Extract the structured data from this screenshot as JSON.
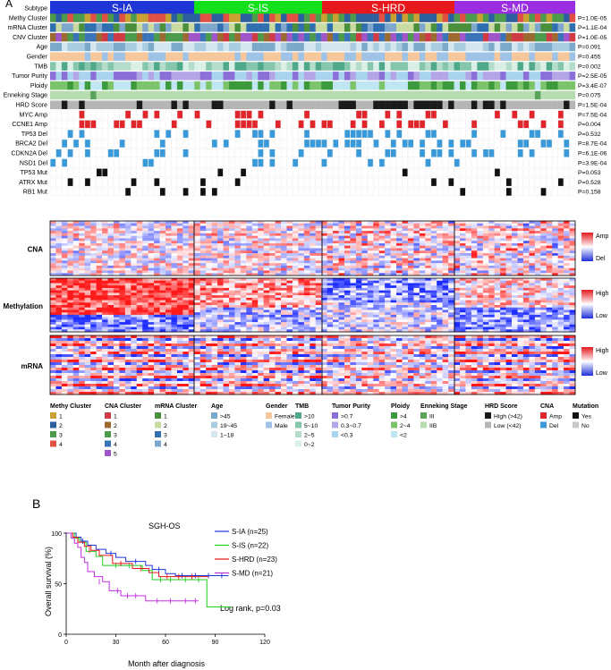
{
  "panels": {
    "a": "A",
    "b": "B"
  },
  "subtypes": [
    {
      "name": "S-IA",
      "color": "#1f35d6"
    },
    {
      "name": "S-IS",
      "color": "#12e01a"
    },
    {
      "name": "S-HRD",
      "color": "#e6181b"
    },
    {
      "name": "S-MD",
      "color": "#9b2ee0"
    }
  ],
  "annotation_rows": [
    {
      "label": "Subtype",
      "p": ""
    },
    {
      "label": "Methy Cluster",
      "p": "P=1.0E-05"
    },
    {
      "label": "mRNA Cluster",
      "p": "P=1.1E-04"
    },
    {
      "label": "CNV Cluster",
      "p": "P=1.0E-05"
    },
    {
      "label": "Age",
      "p": "P=0.091"
    },
    {
      "label": "Gender",
      "p": "P=0.455"
    },
    {
      "label": "TMB",
      "p": "P=0.002"
    },
    {
      "label": "Tumor Purity",
      "p": "P=2.5E-05"
    },
    {
      "label": "Ploidy",
      "p": "P=3.4E-07"
    },
    {
      "label": "Enneking Stage",
      "p": "P=0.075"
    },
    {
      "label": "HRD Score",
      "p": "P=1.5E-04"
    },
    {
      "label": "MYC Amp",
      "p": "P=7.5E-04"
    },
    {
      "label": "CCNE1 Amp",
      "p": "P=0.004"
    },
    {
      "label": "TP53 Del",
      "p": "P=0.532"
    },
    {
      "label": "BRCA2 Del",
      "p": "P=8.7E-04"
    },
    {
      "label": "CDKN2A Del",
      "p": "P=6.1E-06"
    },
    {
      "label": "NSD1 Del",
      "p": "P=3.9E-04"
    },
    {
      "label": "TP53 Mut",
      "p": "P=0.053"
    },
    {
      "label": "ATRX Mut",
      "p": "P=0.528"
    },
    {
      "label": "RB1 Mut",
      "p": "P=0.158"
    }
  ],
  "heatmaps": [
    {
      "label": "CNA",
      "high": "Amp",
      "low": "Del"
    },
    {
      "label": "Methylation",
      "high": "High",
      "low": "Low"
    },
    {
      "label": "mRNA",
      "high": "High",
      "low": "Low"
    }
  ],
  "legend": [
    {
      "title": "Methy Cluster",
      "items": [
        {
          "t": "1",
          "c": "#c9a032"
        },
        {
          "t": "2",
          "c": "#2c5f9e"
        },
        {
          "t": "3",
          "c": "#4c9a4c"
        },
        {
          "t": "4",
          "c": "#e05043"
        }
      ]
    },
    {
      "title": "CNA Cluster",
      "items": [
        {
          "t": "1",
          "c": "#cf3a45"
        },
        {
          "t": "2",
          "c": "#9c6a30"
        },
        {
          "t": "3",
          "c": "#4c9a4c"
        },
        {
          "t": "4",
          "c": "#3b73b9"
        },
        {
          "t": "5",
          "c": "#a055c8"
        }
      ]
    },
    {
      "title": "mRNA Cluster",
      "items": [
        {
          "t": "1",
          "c": "#4a8f3c"
        },
        {
          "t": "2",
          "c": "#c9dba0"
        },
        {
          "t": "3",
          "c": "#2f6fb0"
        },
        {
          "t": "4",
          "c": "#7fa6cc"
        }
      ]
    },
    {
      "title": "Age",
      "items": [
        {
          "t": ">45",
          "c": "#7aa9c9"
        },
        {
          "t": "19~45",
          "c": "#a9cce0"
        },
        {
          "t": "1~18",
          "c": "#d4e6f0"
        }
      ]
    },
    {
      "title": "Gender",
      "items": [
        {
          "t": "Female",
          "c": "#f6c79a"
        },
        {
          "t": "Male",
          "c": "#9ec3e6"
        }
      ]
    },
    {
      "title": "TMB",
      "items": [
        {
          "t": ">10",
          "c": "#4fa88a"
        },
        {
          "t": "5~10",
          "c": "#86c6ac"
        },
        {
          "t": "2~5",
          "c": "#b4dccb"
        },
        {
          "t": "0~2",
          "c": "#daf0e6"
        }
      ]
    },
    {
      "title": "Tumor Purity",
      "items": [
        {
          "t": ">0.7",
          "c": "#8a6fd8"
        },
        {
          "t": "0.3~0.7",
          "c": "#b3a6e6"
        },
        {
          "t": "<0.3",
          "c": "#a9d4ef"
        }
      ]
    },
    {
      "title": "Ploidy",
      "items": [
        {
          "t": ">4",
          "c": "#3c9a3c"
        },
        {
          "t": "2~4",
          "c": "#7cc46a"
        },
        {
          "t": "<2",
          "c": "#bfe6f2"
        }
      ]
    },
    {
      "title": "Enneking Stage",
      "items": [
        {
          "t": "III",
          "c": "#5aa35a"
        },
        {
          "t": "IIB",
          "c": "#b7dcb0"
        }
      ]
    },
    {
      "title": "HRD Score",
      "items": [
        {
          "t": "High (>42)",
          "c": "#1a1a1a"
        },
        {
          "t": "Low  (<42)",
          "c": "#b5b5b5"
        }
      ]
    },
    {
      "title": "CNA",
      "items": [
        {
          "t": "Amp",
          "c": "#e0262b"
        },
        {
          "t": "Del",
          "c": "#3a9ad9"
        }
      ]
    },
    {
      "title": "Mutation",
      "items": [
        {
          "t": "Yes",
          "c": "#111111"
        },
        {
          "t": "No",
          "c": "#c8c8c8"
        }
      ]
    }
  ],
  "chart_data": {
    "type": "line",
    "title": "SGH-OS",
    "xlabel": "Month after diagnosis",
    "ylabel": "Overall survival (%)",
    "xlim": [
      0,
      120
    ],
    "ylim": [
      0,
      100
    ],
    "xticks": [
      0,
      30,
      60,
      90,
      120
    ],
    "yticks": [
      0,
      50,
      100
    ],
    "annotation": "Log rank, p=0.03",
    "series": [
      {
        "name": "S-IA (n=25)",
        "color": "#1f35d6",
        "steps": [
          [
            0,
            100
          ],
          [
            6,
            96
          ],
          [
            9,
            92
          ],
          [
            13,
            88
          ],
          [
            18,
            84
          ],
          [
            24,
            80
          ],
          [
            30,
            76
          ],
          [
            36,
            72
          ],
          [
            48,
            68
          ],
          [
            52,
            64
          ],
          [
            60,
            60
          ],
          [
            66,
            58
          ],
          [
            90,
            58
          ],
          [
            98,
            58
          ]
        ],
        "censor": [
          [
            10,
            92
          ],
          [
            27,
            80
          ],
          [
            42,
            72
          ],
          [
            56,
            64
          ],
          [
            70,
            58
          ],
          [
            78,
            58
          ],
          [
            86,
            58
          ],
          [
            94,
            58
          ]
        ]
      },
      {
        "name": "S-IS (n=22)",
        "color": "#1fcf1f",
        "steps": [
          [
            0,
            100
          ],
          [
            5,
            95
          ],
          [
            8,
            91
          ],
          [
            12,
            82
          ],
          [
            18,
            77
          ],
          [
            22,
            68
          ],
          [
            46,
            63
          ],
          [
            52,
            54
          ],
          [
            84,
            54
          ],
          [
            85,
            27
          ],
          [
            100,
            27
          ]
        ],
        "censor": [
          [
            30,
            68
          ],
          [
            38,
            68
          ],
          [
            57,
            54
          ],
          [
            63,
            54
          ],
          [
            72,
            54
          ],
          [
            80,
            54
          ]
        ]
      },
      {
        "name": "S-HRD (n=23)",
        "color": "#e6181b",
        "steps": [
          [
            0,
            100
          ],
          [
            4,
            96
          ],
          [
            7,
            91
          ],
          [
            11,
            87
          ],
          [
            15,
            83
          ],
          [
            20,
            78
          ],
          [
            28,
            70
          ],
          [
            40,
            65
          ],
          [
            50,
            61
          ],
          [
            56,
            57
          ],
          [
            86,
            57
          ]
        ],
        "censor": [
          [
            14,
            83
          ],
          [
            33,
            70
          ],
          [
            45,
            65
          ],
          [
            61,
            57
          ],
          [
            68,
            57
          ],
          [
            76,
            57
          ]
        ]
      },
      {
        "name": "S-MD (n=21)",
        "color": "#c22ee0",
        "steps": [
          [
            0,
            100
          ],
          [
            3,
            95
          ],
          [
            5,
            90
          ],
          [
            7,
            86
          ],
          [
            9,
            76
          ],
          [
            11,
            71
          ],
          [
            13,
            62
          ],
          [
            17,
            57
          ],
          [
            22,
            52
          ],
          [
            26,
            43
          ],
          [
            33,
            38
          ],
          [
            48,
            33
          ],
          [
            80,
            33
          ]
        ],
        "censor": [
          [
            20,
            52
          ],
          [
            31,
            43
          ],
          [
            37,
            38
          ],
          [
            42,
            38
          ],
          [
            55,
            33
          ],
          [
            63,
            33
          ],
          [
            72,
            33
          ],
          [
            78,
            33
          ]
        ]
      }
    ]
  }
}
